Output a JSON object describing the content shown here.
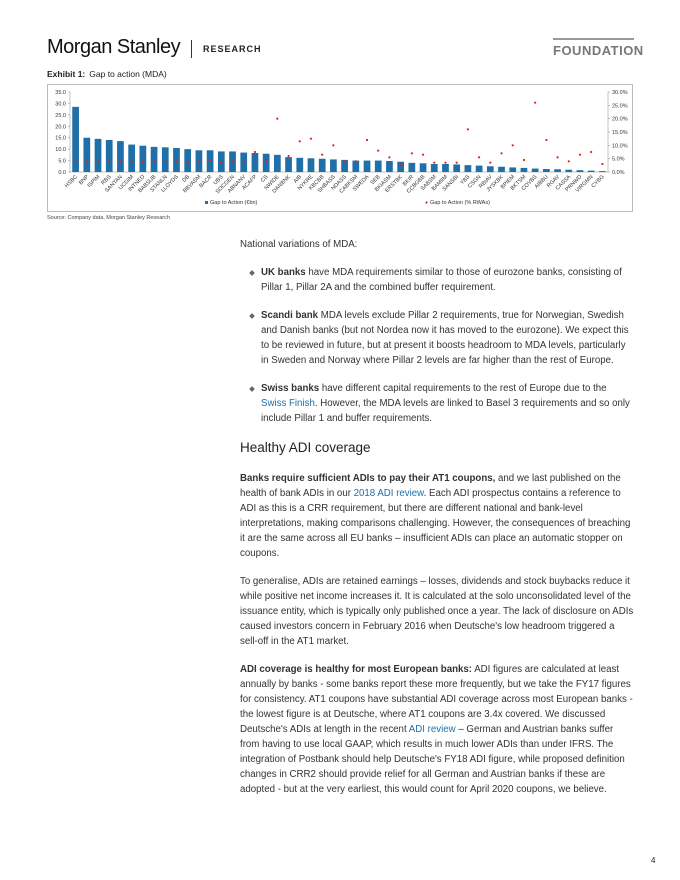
{
  "header": {
    "brand": "Morgan Stanley",
    "section": "RESEARCH",
    "series": "FOUNDATION"
  },
  "exhibit": {
    "label": "Exhibit 1:",
    "title": "Gap to action (MDA)",
    "source": "Source: Company data, Morgan Stanley Research"
  },
  "chart_data": {
    "type": "bar",
    "categories": [
      "HSBC",
      "BNP",
      "ISPIM",
      "RBS",
      "SANTAN",
      "UCGIM",
      "INTNED",
      "BABSUB",
      "STANLN",
      "LLOYDS",
      "DB",
      "BBVASM",
      "BACR",
      "UBS",
      "SOCGEN",
      "ABNANV",
      "ACAFP",
      "CS",
      "NWIDE",
      "DANBNK",
      "AIB",
      "NYKRE",
      "KBCBB",
      "SHBASS",
      "NDASS",
      "CABKSM",
      "SWEDA",
      "SEB",
      "BKIASM",
      "ERSTBK",
      "BKIR",
      "CCBGBB",
      "SABSM",
      "BAMIIM",
      "SANSBI",
      "YBS",
      "CSGN",
      "RBIAV",
      "JYSKBK",
      "BPIEM",
      "BKTSM",
      "COVBS",
      "AIBBU",
      "RGAV",
      "CASSA",
      "PRNWD",
      "VIRGMN",
      "CYBG"
    ],
    "series": [
      {
        "name": "Gap to Action (€bn)",
        "color": "#1f6fa8",
        "type": "bar",
        "values": [
          28.5,
          15,
          14.5,
          14,
          13.5,
          12,
          11.5,
          11,
          10.8,
          10.5,
          10,
          9.5,
          9.5,
          9,
          9,
          8.5,
          8.3,
          8,
          7.5,
          6.5,
          6.2,
          6,
          5.8,
          5.5,
          5.3,
          5,
          5,
          5,
          4.8,
          4.5,
          4,
          3.8,
          3.5,
          3.5,
          3.3,
          3,
          2.8,
          2.5,
          2.3,
          2,
          1.8,
          1.5,
          1.3,
          1.2,
          1,
          0.8,
          0.6,
          0.4
        ]
      },
      {
        "name": "Gap to Action (% RWAs)",
        "color": "#e0201b",
        "type": "scatter",
        "axis": "y2",
        "values": [
          4,
          4.5,
          4,
          4,
          4,
          4,
          3.5,
          4.5,
          4,
          4,
          3.5,
          4,
          4.5,
          3.5,
          4,
          4,
          7.5,
          4.5,
          20,
          6,
          11.5,
          12.5,
          6.5,
          10,
          4,
          4,
          12,
          8,
          5.5,
          3,
          7,
          6.5,
          3.5,
          3.5,
          3.5,
          16,
          5.5,
          3.5,
          7,
          10,
          4.5,
          26,
          12,
          5.5,
          4,
          6.5,
          7.5,
          3
        ]
      }
    ],
    "ylim": [
      0,
      35
    ],
    "yticks": [
      {
        "value": 0,
        "label": "0.0"
      },
      {
        "value": 5,
        "label": "5.0"
      },
      {
        "value": 10,
        "label": "10.0"
      },
      {
        "value": 15,
        "label": "15.0"
      },
      {
        "value": 20,
        "label": "20.0"
      },
      {
        "value": 25,
        "label": "25.0"
      },
      {
        "value": 30,
        "label": "30.0"
      },
      {
        "value": 35,
        "label": "35.0"
      }
    ],
    "y2lim": [
      0,
      30
    ],
    "y2ticks": [
      {
        "value": 0,
        "label": "0.0%"
      },
      {
        "value": 5,
        "label": "5.0%"
      },
      {
        "value": 10,
        "label": "10.0%"
      },
      {
        "value": 15,
        "label": "15.0%"
      },
      {
        "value": 20,
        "label": "20.0%"
      },
      {
        "value": 25,
        "label": "25.0%"
      },
      {
        "value": 30,
        "label": "30.0%"
      }
    ]
  },
  "body": {
    "intro": "National variations of MDA:",
    "bullets": [
      {
        "bold": "UK banks",
        "text": " have MDA requirements similar to those of eurozone banks, consisting of Pillar 1, Pillar 2A and the combined buffer requirement."
      },
      {
        "bold": "Scandi bank",
        "text": " MDA levels exclude Pillar 2 requirements, true for Norwegian, Swedish and Danish banks (but not Nordea now it has moved to the eurozone). We expect this to be reviewed in future, but at present it boosts headroom to MDA levels, particularly in Sweden and Norway where Pillar 2 levels are far higher than the rest of Europe."
      },
      {
        "bold": "Swiss banks",
        "text": " have different capital requirements to the rest of Europe due to the ",
        "link": "Swiss Finish",
        "text_after": ". However, the MDA levels are linked to Basel 3 requirements and so only include Pillar 1 and buffer requirements."
      }
    ],
    "heading": "Healthy ADI coverage",
    "paragraphs": [
      {
        "bold": "Banks require sufficient ADIs to pay their AT1 coupons,",
        "text": " and we last published on the health of bank ADIs in our ",
        "link": "2018 ADI review",
        "text_after": ". Each ADI prospectus contains a reference to ADI as this is a CRR requirement, but there are different national and bank-level interpretations, making comparisons challenging. However, the consequences of breaching it are the same across all EU banks – insufficient ADIs can place an automatic stopper on coupons."
      },
      {
        "text": "To generalise, ADIs are retained earnings – losses, dividends and stock buybacks reduce it while positive net income increases it. It is calculated at the solo unconsolidated level of the issuance entity, which is typically only published once a year. The lack of disclosure on ADIs caused investors concern in February 2016 when Deutsche's low headroom triggered a sell-off in the AT1 market."
      },
      {
        "bold": "ADI coverage is healthy for most European banks:",
        "text": " ADI figures are calculated at least annually by banks - some banks report these more frequently, but we take the FY17 figures for consistency. AT1 coupons have substantial ADI coverage across most European banks - the lowest figure is at Deutsche, where AT1 coupons are 3.4x covered. We discussed Deutsche's ADIs at length in the recent ",
        "link": "ADI review",
        "text_after": " – German and Austrian banks suffer from having to use local GAAP, which results in much lower ADIs than under IFRS. The integration of Postbank should help Deutsche's FY18 ADI figure, while proposed definition changes in CRR2 should provide relief for all German and Austrian banks if these are adopted - but at the very earliest, this would count for April 2020 coupons, we believe."
      }
    ]
  },
  "footer": {
    "page": "4"
  }
}
